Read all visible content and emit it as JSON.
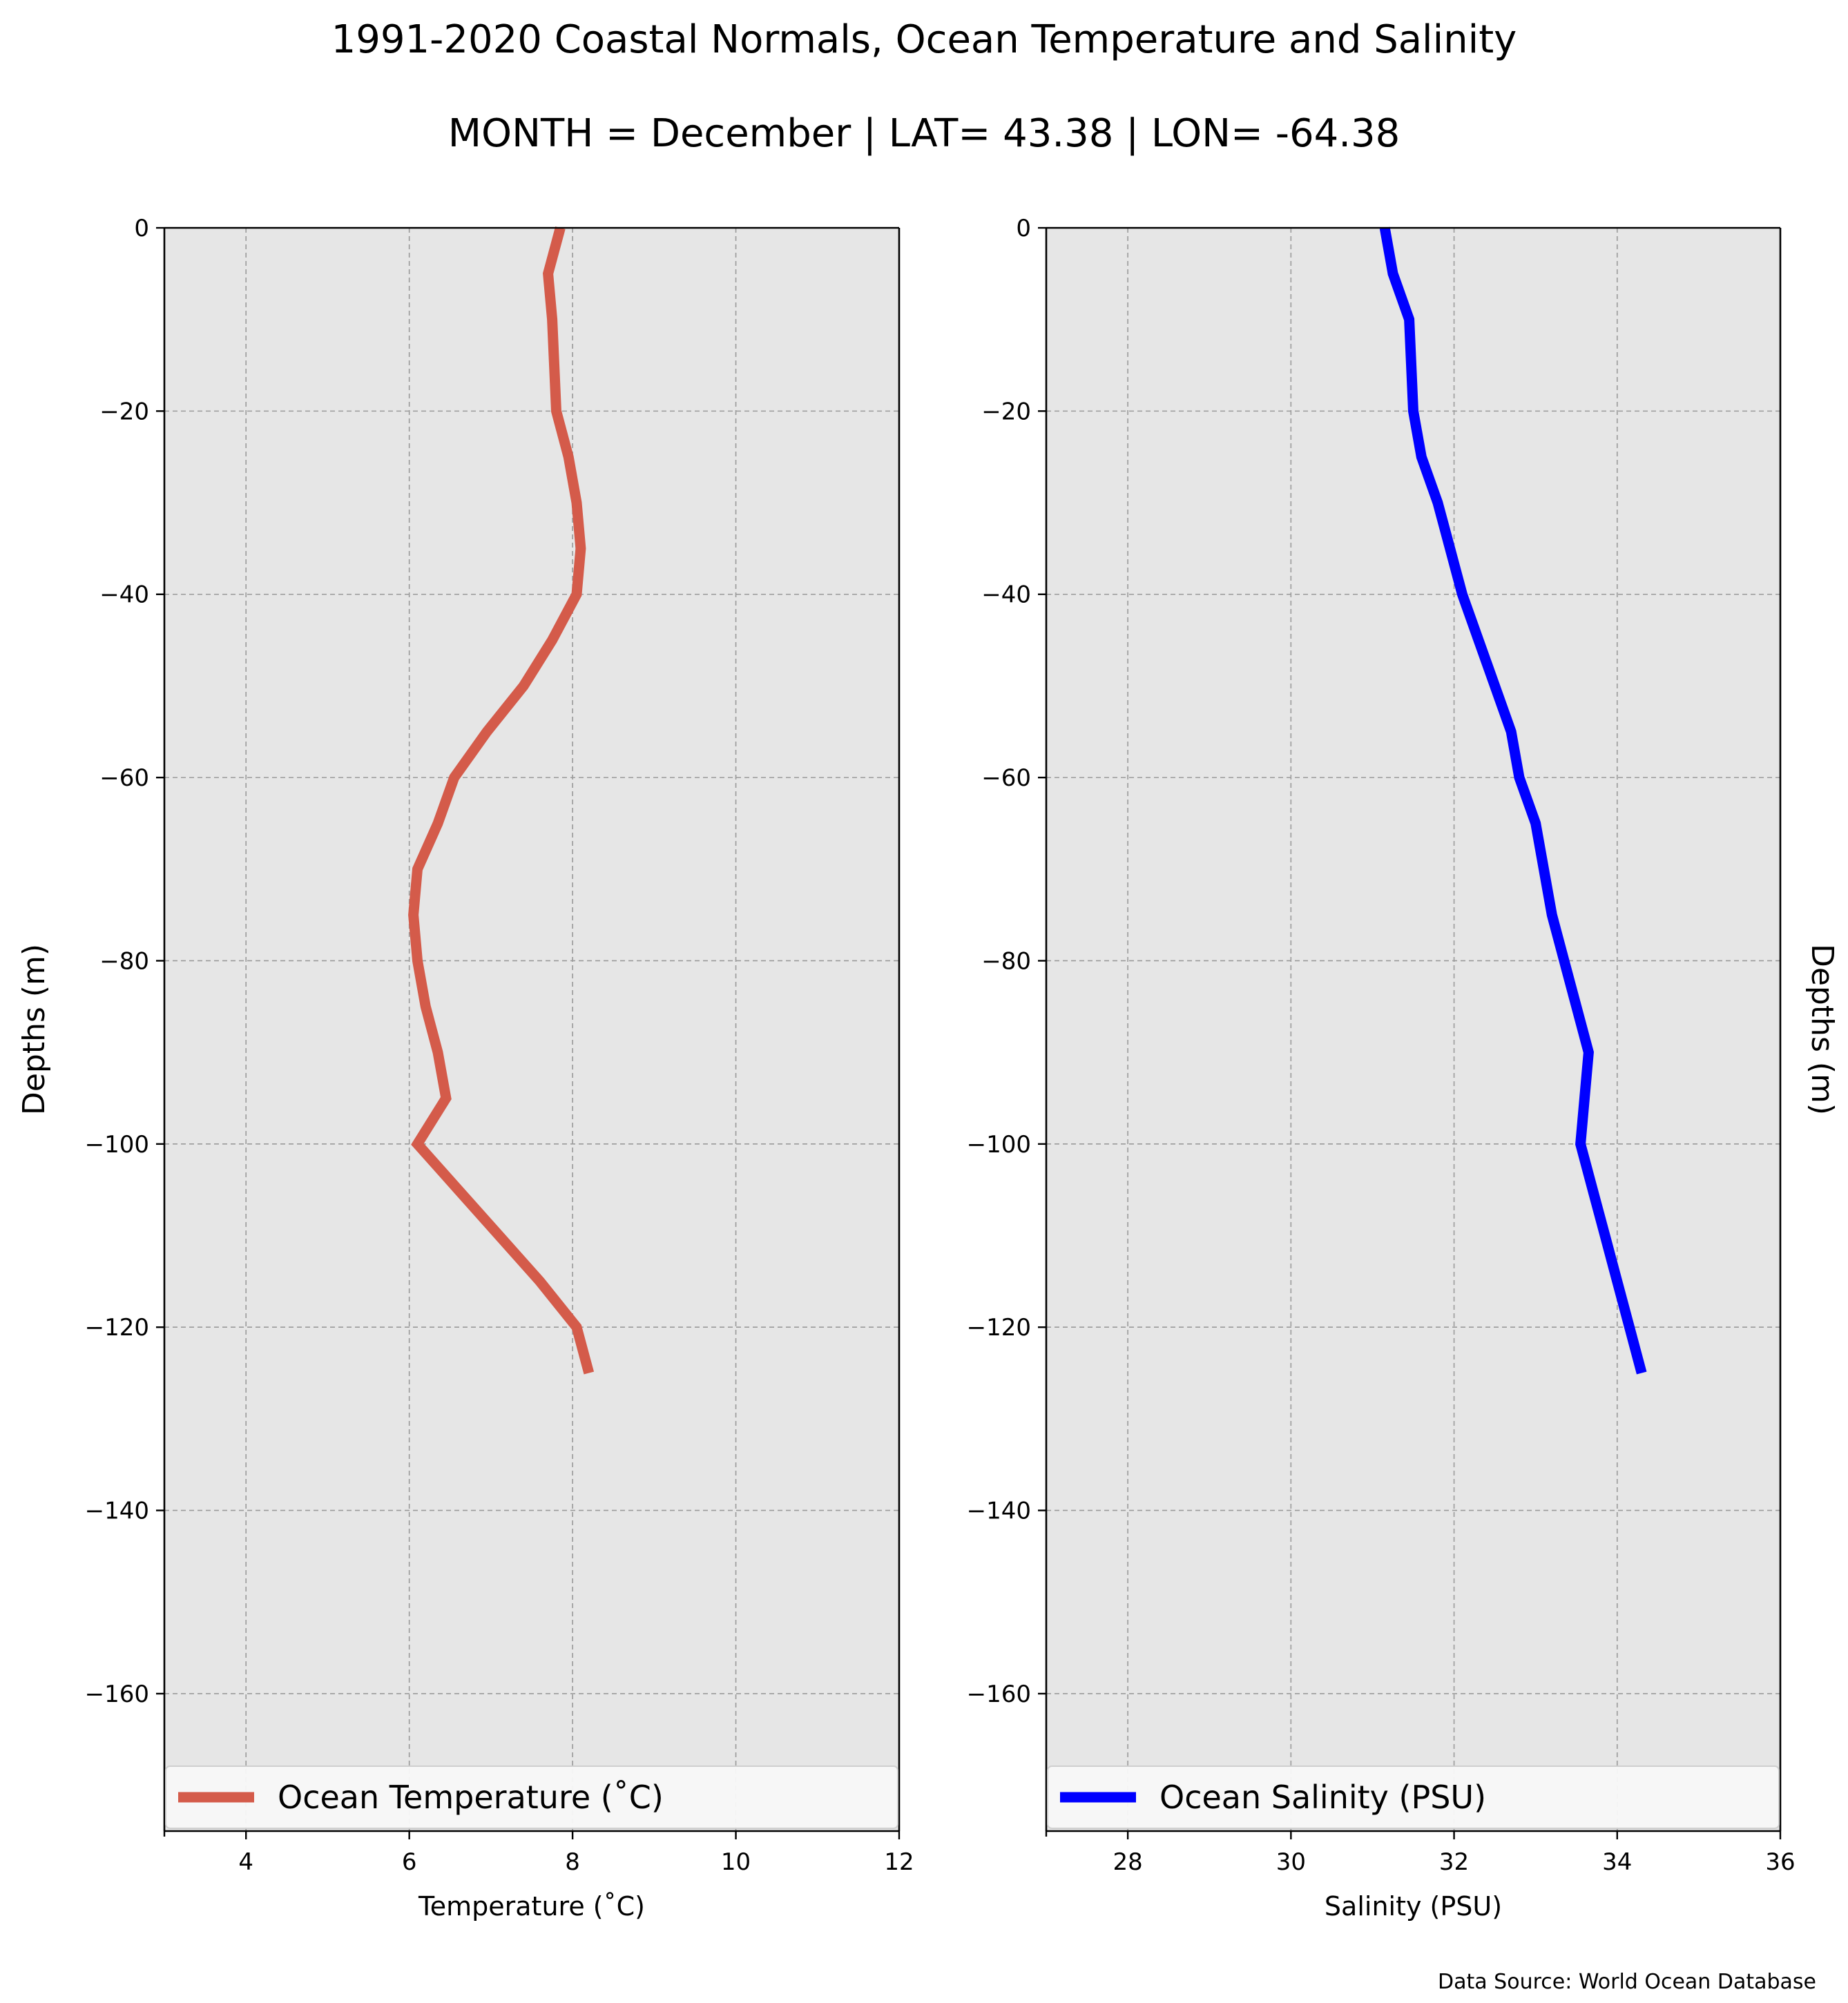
{
  "title_line1": "1991-2020 Coastal Normals, Ocean Temperature and Salinity",
  "title_line2": "MONTH = December | LAT= 43.38 | LON= -64.38",
  "data_source": "Data Source: World Ocean Database",
  "chart_data": [
    {
      "type": "line",
      "xlabel": "Temperature ($^\\circ$C)",
      "xlabel_display": "Temperature (˚C)",
      "ylabel": "Depths (m)",
      "ylabel_side": "left",
      "xlim": [
        3,
        12
      ],
      "ylim": [
        -175,
        0
      ],
      "x_ticks": [
        4,
        6,
        8,
        10,
        12
      ],
      "x_tick_labels": [
        "4",
        "6",
        "8",
        "10",
        "12"
      ],
      "y_ticks": [
        0,
        -20,
        -40,
        -60,
        -80,
        -100,
        -120,
        -140,
        -160
      ],
      "y_tick_labels": [
        "0",
        "−20",
        "−40",
        "−60",
        "−80",
        "−100",
        "−120",
        "−140",
        "−160"
      ],
      "grid": true,
      "legend_position": "bottom",
      "series": [
        {
          "name": "Ocean Temperature (˚C)",
          "color": "#d45b4a",
          "depths": [
            0,
            -5,
            -10,
            -20,
            -25,
            -30,
            -35,
            -40,
            -45,
            -50,
            -55,
            -60,
            -65,
            -70,
            -75,
            -80,
            -85,
            -90,
            -95,
            -100,
            -105,
            -110,
            -115,
            -120,
            -125
          ],
          "values": [
            7.85,
            7.7,
            7.75,
            7.8,
            7.95,
            8.05,
            8.1,
            8.05,
            7.75,
            7.4,
            6.95,
            6.55,
            6.35,
            6.1,
            6.05,
            6.1,
            6.2,
            6.35,
            6.45,
            6.1,
            6.6,
            7.1,
            7.6,
            8.05,
            8.2
          ]
        }
      ]
    },
    {
      "type": "line",
      "xlabel": "Salinity (PSU)",
      "ylabel": "Depths (m)",
      "ylabel_side": "right",
      "xlim": [
        27,
        36
      ],
      "ylim": [
        -175,
        0
      ],
      "x_ticks": [
        28,
        30,
        32,
        34,
        36
      ],
      "x_tick_labels": [
        "28",
        "30",
        "32",
        "34",
        "36"
      ],
      "y_ticks": [
        0,
        -20,
        -40,
        -60,
        -80,
        -100,
        -120,
        -140,
        -160
      ],
      "y_tick_labels": [
        "0",
        "−20",
        "−40",
        "−60",
        "−80",
        "−100",
        "−120",
        "−140",
        "−160"
      ],
      "grid": true,
      "legend_position": "bottom",
      "series": [
        {
          "name": "Ocean Salinity (PSU)",
          "color": "#0000ff",
          "depths": [
            0,
            -5,
            -10,
            -20,
            -25,
            -30,
            -35,
            -40,
            -45,
            -50,
            -55,
            -60,
            -65,
            -70,
            -75,
            -80,
            -85,
            -90,
            -95,
            -100,
            -105,
            -110,
            -115,
            -120,
            -125
          ],
          "values": [
            31.15,
            31.25,
            31.45,
            31.5,
            31.6,
            31.8,
            31.95,
            32.1,
            32.3,
            32.5,
            32.7,
            32.8,
            33.0,
            33.1,
            33.2,
            33.35,
            33.5,
            33.65,
            33.6,
            33.55,
            33.7,
            33.85,
            34.0,
            34.15,
            34.3
          ]
        }
      ]
    }
  ]
}
